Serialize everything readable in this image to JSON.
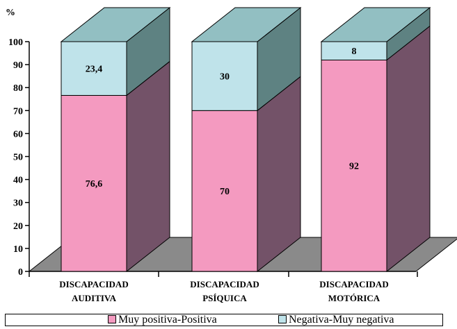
{
  "chart_data": {
    "type": "bar",
    "stacked": true,
    "style": "3d",
    "ylabel": "%",
    "ylim": [
      0,
      100
    ],
    "yticks": [
      0,
      10,
      20,
      30,
      40,
      50,
      60,
      70,
      80,
      90,
      100
    ],
    "categories": [
      [
        "DISCAPACIDAD",
        "AUDITIVA"
      ],
      [
        "DISCAPACIDAD",
        "PSÍQUICA"
      ],
      [
        "DISCAPACIDAD",
        "MOTÓRICA"
      ]
    ],
    "series": [
      {
        "name": "Muy positiva-Positiva",
        "values": [
          76.6,
          70,
          92
        ],
        "labels": [
          "76,6",
          "70",
          "92"
        ],
        "color": "#f49ac0",
        "side_color": "#735268"
      },
      {
        "name": "Negativa-Muy negativa",
        "values": [
          23.4,
          30,
          8
        ],
        "labels": [
          "23,4",
          "30",
          "8"
        ],
        "color": "#bfe3ea",
        "side_color": "#5e8282"
      }
    ],
    "top_color": "#92bfc2",
    "floor_color": "#8a8a8a",
    "grid": false,
    "legend": "bottom"
  }
}
